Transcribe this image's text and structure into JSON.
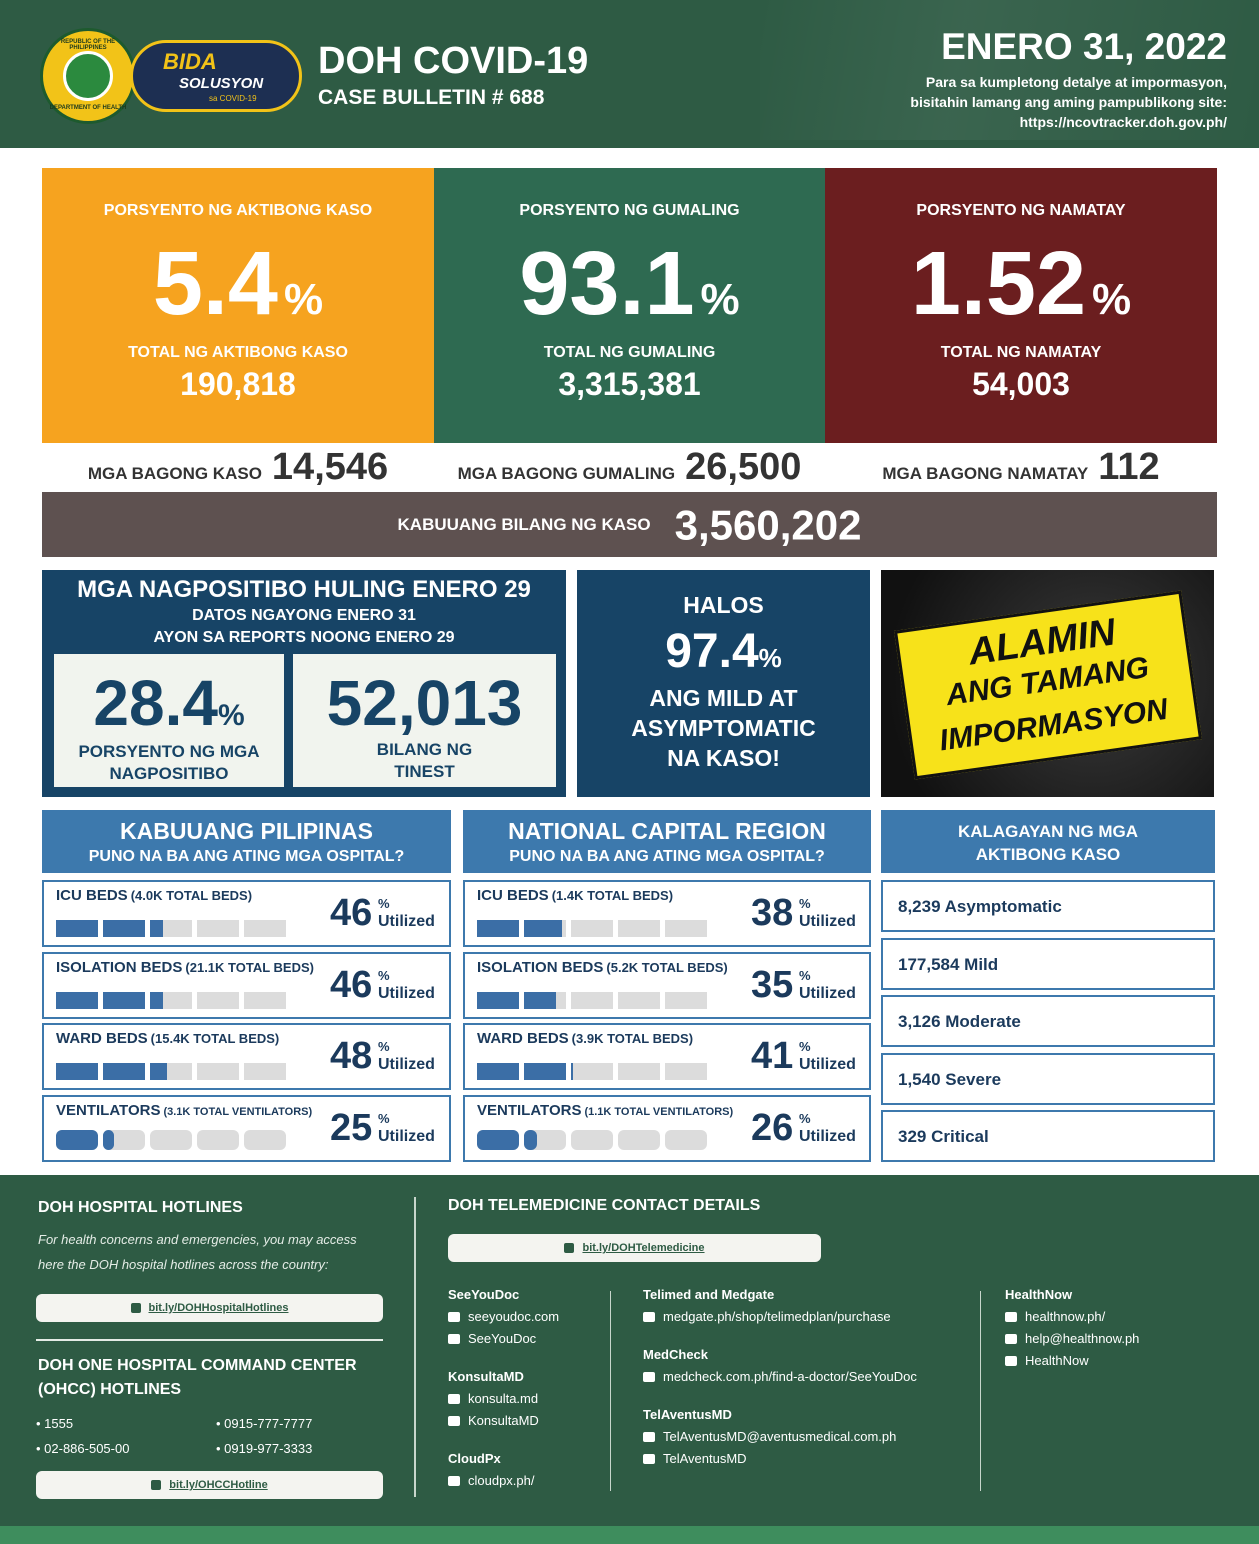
{
  "header": {
    "seal": [
      "REPUBLIC OF THE PHILIPPINES",
      "DEPARTMENT OF HEALTH"
    ],
    "logo": [
      "BIDA",
      "SOLUSYON",
      "sa COVID-19"
    ],
    "agency": "DOH COVID-19",
    "bulletin": "CASE BULLETIN # 688",
    "date": "ENERO 31, 2022",
    "note": [
      "Para sa kumpletong detalye at impormasyon,",
      "bisitahin lamang ang aming pampublikong site:",
      "https://ncovtracker.doh.gov.ph/"
    ]
  },
  "stats": [
    {
      "label": "PORSYENTO NG AKTIBONG KASO",
      "value": "5.4",
      "unit": "%",
      "total_label": "TOTAL NG AKTIBONG KASO",
      "total": "190,818",
      "new_label": "MGA BAGONG KASO",
      "new": "14,546"
    },
    {
      "label": "PORSYENTO NG GUMALING",
      "value": "93.1",
      "unit": "%",
      "total_label": "TOTAL NG GUMALING",
      "total": "3,315,381",
      "new_label": "MGA BAGONG GUMALING",
      "new": "26,500"
    },
    {
      "label": "PORSYENTO NG NAMATAY",
      "value": "1.52",
      "unit": "%",
      "total_label": "TOTAL NG NAMATAY",
      "total": "54,003",
      "new_label": "MGA BAGONG NAMATAY",
      "new": "112"
    }
  ],
  "total_cases": {
    "label": "KABUUANG BILANG NG KASO",
    "value": "3,560,202"
  },
  "positivity": {
    "title": "MGA NAGPOSITIBO HULING ENERO 29",
    "sub": [
      "DATOS NGAYONG ENERO 31",
      "AYON SA REPORTS NOONG ENERO 29"
    ],
    "rate": "28.4",
    "unit": "%",
    "rate_label": [
      "PORSYENTO NG MGA",
      "NAGPOSITIBO"
    ],
    "tested": "52,013",
    "tested_label": [
      "BILANG NG",
      "TINEST"
    ]
  },
  "mild": {
    "lead": "HALOS",
    "value": "97.4",
    "unit": "%",
    "text": [
      "ANG MILD AT",
      "ASYMPTOMATIC",
      "NA KASO!"
    ]
  },
  "banner": [
    "ALAMIN",
    "ANG TAMANG",
    "IMPORMASYON"
  ],
  "hospitals": {
    "unit": "%",
    "utilized_label": "Utilized",
    "sections": [
      {
        "title": "KABUUANG PILIPINAS",
        "subtitle": "PUNO NA BA ANG ATING MGA OSPITAL?",
        "rows": [
          {
            "name": "ICU BEDS",
            "capacity": "(4.0K TOTAL BEDS)",
            "utilized": 46
          },
          {
            "name": "ISOLATION BEDS",
            "capacity": "(21.1K TOTAL BEDS)",
            "utilized": 46
          },
          {
            "name": "WARD BEDS",
            "capacity": "(15.4K TOTAL BEDS)",
            "utilized": 48
          },
          {
            "name": "VENTILATORS",
            "capacity": "(3.1K TOTAL VENTILATORS)",
            "utilized": 25
          }
        ]
      },
      {
        "title": "NATIONAL CAPITAL REGION",
        "subtitle": "PUNO NA BA ANG ATING MGA OSPITAL?",
        "rows": [
          {
            "name": "ICU BEDS",
            "capacity": "(1.4K TOTAL BEDS)",
            "utilized": 38
          },
          {
            "name": "ISOLATION BEDS",
            "capacity": "(5.2K TOTAL BEDS)",
            "utilized": 35
          },
          {
            "name": "WARD BEDS",
            "capacity": "(3.9K TOTAL BEDS)",
            "utilized": 41
          },
          {
            "name": "VENTILATORS",
            "capacity": "(1.1K TOTAL VENTILATORS)",
            "utilized": 26
          }
        ]
      }
    ]
  },
  "status": {
    "title": [
      "KALAGAYAN NG MGA",
      "AKTIBONG KASO"
    ],
    "rows": [
      "8,239 Asymptomatic",
      "177,584 Mild",
      "3,126 Moderate",
      "1,540 Severe",
      "329 Critical"
    ]
  },
  "footer": {
    "hotlines": {
      "title": "DOH HOSPITAL HOTLINES",
      "text": [
        "For health concerns and emergencies, you may access",
        "here the DOH hospital hotlines across the country:"
      ],
      "link": "bit.ly/DOHHospitalHotlines"
    },
    "ohcc": {
      "title": [
        "DOH ONE HOSPITAL COMMAND CENTER",
        "(OHCC) HOTLINES"
      ],
      "numbers": [
        "• 1555",
        "• 0915-777-7777",
        "• 02-886-505-00",
        "• 0919-977-3333"
      ],
      "link": "bit.ly/OHCCHotline"
    },
    "telemedicine": {
      "title": "DOH TELEMEDICINE CONTACT DETAILS",
      "link": "bit.ly/DOHTelemedicine",
      "columns": [
        [
          {
            "name": "SeeYouDoc",
            "items": [
              "seeyoudoc.com",
              "SeeYouDoc"
            ]
          },
          {
            "name": "KonsultaMD",
            "items": [
              "konsulta.md",
              "KonsultaMD"
            ]
          },
          {
            "name": "CloudPx",
            "items": [
              "cloudpx.ph/"
            ]
          }
        ],
        [
          {
            "name": "Telimed and Medgate",
            "items": [
              "medgate.ph/shop/telimedplan/purchase"
            ]
          },
          {
            "name": "MedCheck",
            "items": [
              "medcheck.com.ph/find-a-doctor/SeeYouDoc"
            ]
          },
          {
            "name": "TelAventusMD",
            "items": [
              "TelAventusMD@aventusmedical.com.ph",
              "TelAventusMD"
            ]
          }
        ],
        [
          {
            "name": "HealthNow",
            "items": [
              "healthnow.ph/",
              "help@healthnow.ph",
              "HealthNow"
            ]
          }
        ]
      ]
    }
  }
}
